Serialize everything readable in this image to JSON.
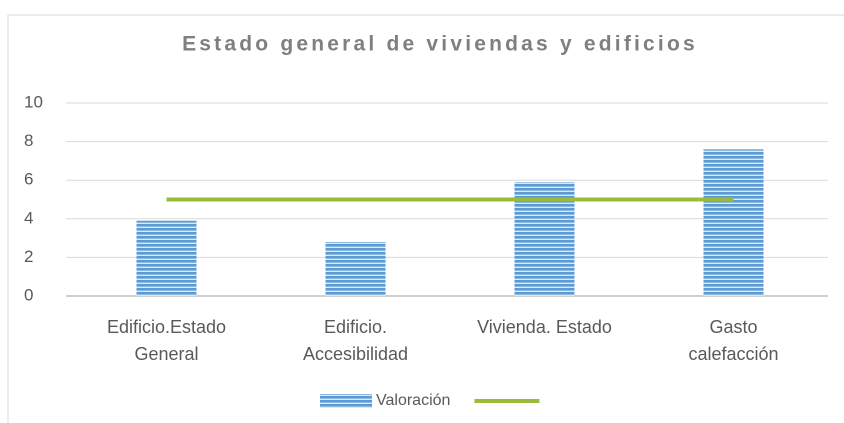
{
  "chart_data": {
    "type": "bar",
    "title": "Estado general de viviendas y edificios",
    "categories": [
      "Edificio.Estado\nGeneral",
      "Edificio.\nAccesibilidad",
      "Vivienda. Estado",
      "Gasto\ncalefacción"
    ],
    "series": [
      {
        "name": "Valoración",
        "type": "bar",
        "color": "#5b9bd5",
        "values": [
          3.9,
          2.8,
          5.9,
          7.6
        ]
      },
      {
        "type": "line",
        "color": "#9bbb3b",
        "values": [
          5,
          5,
          5,
          5
        ]
      }
    ],
    "ylim": [
      0,
      10
    ],
    "yticks": [
      0,
      2,
      4,
      6,
      8,
      10
    ],
    "grid": true,
    "legend": "bottom"
  }
}
